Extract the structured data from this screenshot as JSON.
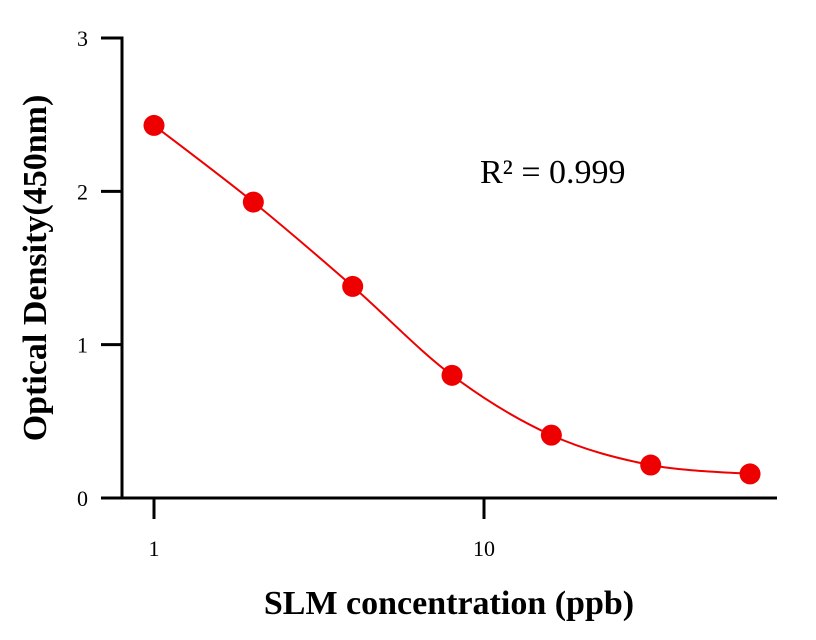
{
  "chart_data": {
    "type": "scatter",
    "xlabel": "SLM concentration (ppb)",
    "ylabel": "Optical Density(450nm)",
    "x_scale": "log",
    "xlim": [
      0.9,
      80
    ],
    "ylim": [
      0,
      3
    ],
    "x_ticks": [
      {
        "value": 1,
        "label": "1"
      },
      {
        "value": 10,
        "label": "10"
      }
    ],
    "y_ticks": [
      {
        "value": 0,
        "label": "0"
      },
      {
        "value": 1,
        "label": "1"
      },
      {
        "value": 2,
        "label": "2"
      },
      {
        "value": 3,
        "label": "3"
      }
    ],
    "grid": false,
    "annotation": "R² = 0.999",
    "series": [
      {
        "x": [
          1,
          2,
          4,
          8,
          16,
          32,
          64
        ],
        "y": [
          2.43,
          1.93,
          1.38,
          0.8,
          0.41,
          0.215,
          0.157
        ],
        "color": "#ee0000",
        "fit_curve": true
      }
    ]
  }
}
